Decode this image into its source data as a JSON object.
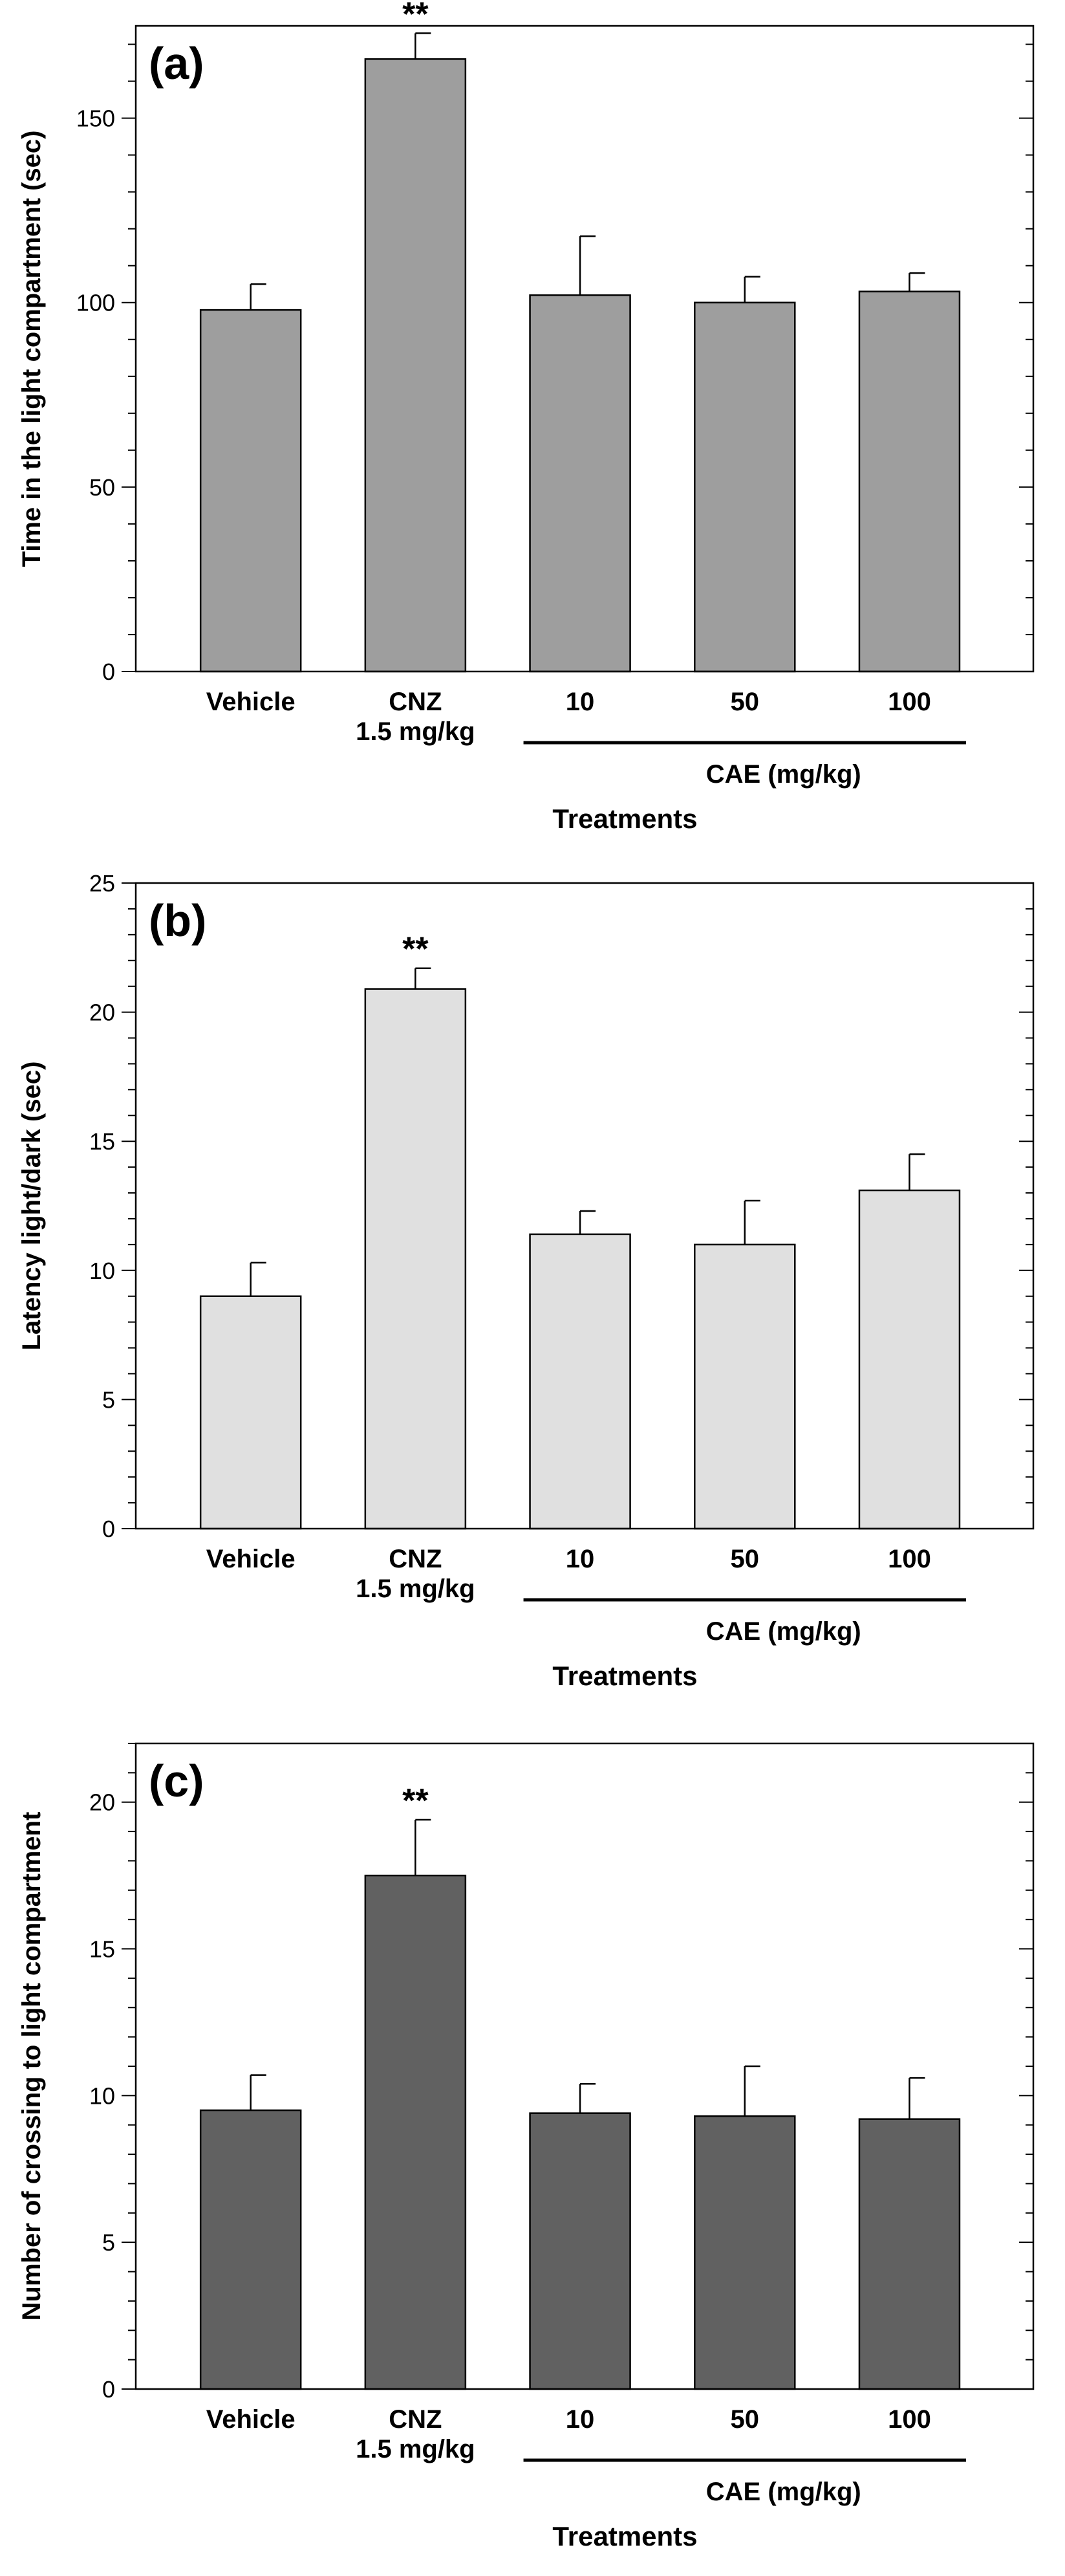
{
  "chart_data": [
    {
      "type": "bar",
      "panel_label": "(a)",
      "categories": [
        "Vehicle",
        "CNZ 1.5 mg/kg",
        "10",
        "50",
        "100"
      ],
      "category_lines": [
        [
          "Vehicle"
        ],
        [
          "CNZ",
          "1.5 mg/kg"
        ],
        [
          "10"
        ],
        [
          "50"
        ],
        [
          "100"
        ]
      ],
      "values": [
        98,
        166,
        102,
        100,
        103
      ],
      "errors": [
        7,
        7,
        16,
        7,
        5
      ],
      "significance": [
        "",
        "**",
        "",
        "",
        ""
      ],
      "group_label": "CAE (mg/kg)",
      "group_span": [
        2,
        4
      ],
      "xlabel": "Treatments",
      "ylabel": "Time in the light compartment (sec)",
      "ylim": [
        0,
        175
      ],
      "yticks": [
        0,
        50,
        100,
        150
      ],
      "minor_step": 10,
      "bar_color": "#9e9e9e"
    },
    {
      "type": "bar",
      "panel_label": "(b)",
      "categories": [
        "Vehicle",
        "CNZ 1.5 mg/kg",
        "10",
        "50",
        "100"
      ],
      "category_lines": [
        [
          "Vehicle"
        ],
        [
          "CNZ",
          "1.5 mg/kg"
        ],
        [
          "10"
        ],
        [
          "50"
        ],
        [
          "100"
        ]
      ],
      "values": [
        9.0,
        20.9,
        11.4,
        11.0,
        13.1
      ],
      "errors": [
        1.3,
        0.8,
        0.9,
        1.7,
        1.4
      ],
      "significance": [
        "",
        "**",
        "",
        "",
        ""
      ],
      "group_label": "CAE (mg/kg)",
      "group_span": [
        2,
        4
      ],
      "xlabel": "Treatments",
      "ylabel": "Latency light/dark (sec)",
      "ylim": [
        0,
        25
      ],
      "yticks": [
        0,
        5,
        10,
        15,
        20,
        25
      ],
      "minor_step": 1,
      "bar_color": "#e0e0e0"
    },
    {
      "type": "bar",
      "panel_label": "(c)",
      "categories": [
        "Vehicle",
        "CNZ 1.5 mg/kg",
        "10",
        "50",
        "100"
      ],
      "category_lines": [
        [
          "Vehicle"
        ],
        [
          "CNZ",
          "1.5 mg/kg"
        ],
        [
          "10"
        ],
        [
          "50"
        ],
        [
          "100"
        ]
      ],
      "values": [
        9.5,
        17.5,
        9.4,
        9.3,
        9.2
      ],
      "errors": [
        1.2,
        1.9,
        1.0,
        1.7,
        1.4
      ],
      "significance": [
        "",
        "**",
        "",
        "",
        ""
      ],
      "group_label": "CAE (mg/kg)",
      "group_span": [
        2,
        4
      ],
      "xlabel": "Treatments",
      "ylabel": "Number of crossing to light compartment",
      "ylim": [
        0,
        22
      ],
      "yticks": [
        0,
        5,
        10,
        15,
        20
      ],
      "minor_step": 1,
      "bar_color": "#616161"
    }
  ]
}
